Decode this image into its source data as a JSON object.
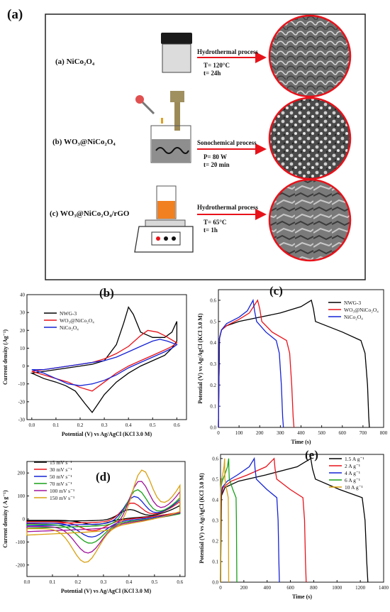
{
  "panel_a": {
    "label": "(a)",
    "rows": [
      {
        "name": "(a) NiCo₂O₄",
        "process": "Hydrothermal process",
        "cond1": "T= 120°C",
        "cond2": "t= 24h"
      },
      {
        "name": "(b) WO₃@NiCo₂O₄",
        "process": "Sonochemical process",
        "cond1": "P= 80 W",
        "cond2": "t= 20 min"
      },
      {
        "name": "(c) WO₃@NiCo₂O₄/rGO",
        "process": "Hydrothermal process",
        "cond1": "T= 65°C",
        "cond2": "t= 1h"
      }
    ]
  },
  "chart_data": [
    {
      "type": "line",
      "label": "(b)",
      "xlabel": "Potential (V) vs Ag/AgCl (KCl 3.0 M)",
      "ylabel": "Current density (Ag⁻¹)",
      "xlim": [
        -0.02,
        0.64
      ],
      "ylim": [
        -30,
        40
      ],
      "xticks": [
        0.0,
        0.1,
        0.2,
        0.3,
        0.4,
        0.5,
        0.6
      ],
      "yticks": [
        -30,
        -20,
        -10,
        0,
        10,
        20,
        30,
        40
      ],
      "legend": "top-left",
      "series": [
        {
          "name": "NWG-3",
          "color": "#000000",
          "x": [
            0,
            0.05,
            0.1,
            0.15,
            0.2,
            0.25,
            0.3,
            0.35,
            0.38,
            0.4,
            0.42,
            0.45,
            0.5,
            0.55,
            0.58,
            0.6,
            0.6,
            0.58,
            0.55,
            0.5,
            0.45,
            0.4,
            0.35,
            0.3,
            0.27,
            0.25,
            0.22,
            0.18,
            0.14,
            0.1,
            0.05,
            0
          ],
          "y": [
            -4,
            -3,
            -2,
            -1,
            0,
            1,
            3,
            12,
            24,
            33,
            29,
            19,
            16,
            16,
            19,
            25,
            14,
            10,
            6,
            3,
            0,
            -4,
            -9,
            -16,
            -22,
            -26,
            -21,
            -14,
            -11,
            -9,
            -7,
            -4
          ]
        },
        {
          "name": "WO₃@NiCo₂O₄",
          "color": "#e8121a",
          "x": [
            0,
            0.05,
            0.1,
            0.15,
            0.2,
            0.25,
            0.3,
            0.35,
            0.4,
            0.45,
            0.48,
            0.52,
            0.55,
            0.6,
            0.6,
            0.58,
            0.55,
            0.5,
            0.45,
            0.4,
            0.35,
            0.3,
            0.25,
            0.2,
            0.15,
            0.1,
            0.05,
            0
          ],
          "y": [
            -3,
            -2,
            -1,
            0,
            1,
            2,
            4,
            7,
            11,
            17,
            20,
            19,
            17,
            13,
            13,
            11,
            9,
            6,
            3,
            0,
            -4,
            -9,
            -14,
            -12,
            -9,
            -7,
            -5,
            -3
          ]
        },
        {
          "name": "NiCo₂O₄",
          "color": "#1523d6",
          "x": [
            0,
            0.05,
            0.1,
            0.15,
            0.2,
            0.25,
            0.3,
            0.35,
            0.4,
            0.45,
            0.5,
            0.53,
            0.56,
            0.6,
            0.6,
            0.58,
            0.55,
            0.5,
            0.45,
            0.4,
            0.35,
            0.3,
            0.25,
            0.2,
            0.15,
            0.1,
            0.05,
            0
          ],
          "y": [
            -2,
            -2,
            -1,
            0,
            1,
            2,
            3,
            5,
            8,
            11,
            14,
            15,
            14,
            12,
            12,
            10,
            8,
            5,
            2,
            -1,
            -5,
            -8,
            -10,
            -11,
            -10,
            -7,
            -4,
            -2
          ]
        }
      ]
    },
    {
      "type": "line",
      "label": "(c)",
      "xlabel": "Time (s)",
      "ylabel": "Potential (V) vs Ag/AgCl (KCl 3.0 M)",
      "xlim": [
        0,
        800
      ],
      "ylim": [
        0,
        0.65
      ],
      "xticks": [
        0,
        100,
        200,
        300,
        400,
        500,
        600,
        700,
        800
      ],
      "yticks": [
        0.0,
        0.1,
        0.2,
        0.3,
        0.4,
        0.5,
        0.6
      ],
      "legend": "top-right",
      "series": [
        {
          "name": "NWG-3",
          "color": "#000000",
          "x": [
            0,
            5,
            15,
            40,
            100,
            200,
            300,
            400,
            450,
            460,
            470,
            600,
            690,
            710,
            722,
            728,
            731
          ],
          "y": [
            0,
            0.42,
            0.46,
            0.48,
            0.5,
            0.52,
            0.54,
            0.57,
            0.6,
            0.56,
            0.5,
            0.45,
            0.41,
            0.35,
            0.2,
            0.05,
            0
          ]
        },
        {
          "name": "WO₃@NiCo₂O₄",
          "color": "#e8121a",
          "x": [
            0,
            5,
            15,
            40,
            100,
            150,
            190,
            200,
            210,
            260,
            330,
            345,
            355,
            362,
            366
          ],
          "y": [
            0,
            0.42,
            0.46,
            0.48,
            0.51,
            0.54,
            0.6,
            0.56,
            0.5,
            0.45,
            0.41,
            0.35,
            0.2,
            0.05,
            0
          ]
        },
        {
          "name": "NiCo₂O₄",
          "color": "#1523d6",
          "x": [
            0,
            5,
            15,
            40,
            100,
            140,
            168,
            175,
            185,
            230,
            280,
            295,
            305,
            311,
            315
          ],
          "y": [
            0,
            0.42,
            0.46,
            0.49,
            0.52,
            0.55,
            0.6,
            0.55,
            0.5,
            0.45,
            0.41,
            0.35,
            0.2,
            0.05,
            0
          ]
        }
      ]
    },
    {
      "type": "line",
      "label": "(d)",
      "xlabel": "Potential (V) vs Ag/AgCl (KCl 3.0 M)",
      "ylabel": "Current density ( A g⁻¹)",
      "xlim": [
        0,
        0.62
      ],
      "ylim": [
        -250,
        250
      ],
      "xticks": [
        0.0,
        0.1,
        0.2,
        0.3,
        0.4,
        0.5,
        0.6
      ],
      "yticks": [
        -200,
        -100,
        0,
        100,
        200
      ],
      "legend": "top-left",
      "series": [
        {
          "name": "15 mV s⁻¹",
          "color": "#000000",
          "peak": 40,
          "trough": -25,
          "start": -10,
          "end": 60,
          "px": 0.4,
          "tx": 0.27
        },
        {
          "name": "30 mV s⁻¹",
          "color": "#e8121a",
          "peak": 70,
          "trough": -50,
          "start": -20,
          "end": 75,
          "px": 0.41,
          "tx": 0.26
        },
        {
          "name": "50 mV s⁻¹",
          "color": "#1523d6",
          "peak": 100,
          "trough": -75,
          "start": -30,
          "end": 80,
          "px": 0.42,
          "tx": 0.255
        },
        {
          "name": "70 mV s⁻¹",
          "color": "#18a018",
          "peak": 130,
          "trough": -100,
          "start": -40,
          "end": 85,
          "px": 0.43,
          "tx": 0.25
        },
        {
          "name": "100 mV s⁻¹",
          "color": "#a0139a",
          "peak": 168,
          "trough": -140,
          "start": -55,
          "end": 110,
          "px": 0.44,
          "tx": 0.24
        },
        {
          "name": "150 mV s⁻¹",
          "color": "#d9a010",
          "peak": 212,
          "trough": -178,
          "start": -70,
          "end": 135,
          "px": 0.45,
          "tx": 0.23
        }
      ]
    },
    {
      "type": "line",
      "label": "(e)",
      "xlabel": "Time (s)",
      "ylabel": "Potential (V) vs Ag/AgCl (KCl 3.0 M)",
      "xlim": [
        0,
        1400
      ],
      "ylim": [
        0,
        0.62
      ],
      "xticks": [
        0,
        200,
        400,
        600,
        800,
        1000,
        1200,
        1400
      ],
      "yticks": [
        0.0,
        0.1,
        0.2,
        0.3,
        0.4,
        0.5,
        0.6
      ],
      "legend": "top-right",
      "series": [
        {
          "name": "1.5 A g⁻¹",
          "color": "#000000",
          "charge": 775,
          "end": 1265
        },
        {
          "name": "2 A g⁻¹",
          "color": "#e8121a",
          "charge": 460,
          "end": 735
        },
        {
          "name": "4 A g⁻¹",
          "color": "#1523d6",
          "charge": 290,
          "end": 505
        },
        {
          "name": "6 A g⁻¹",
          "color": "#18a018",
          "charge": 70,
          "end": 140
        },
        {
          "name": "10 A g⁻¹",
          "color": "#d9a010",
          "charge": 35,
          "end": 70
        }
      ]
    }
  ]
}
